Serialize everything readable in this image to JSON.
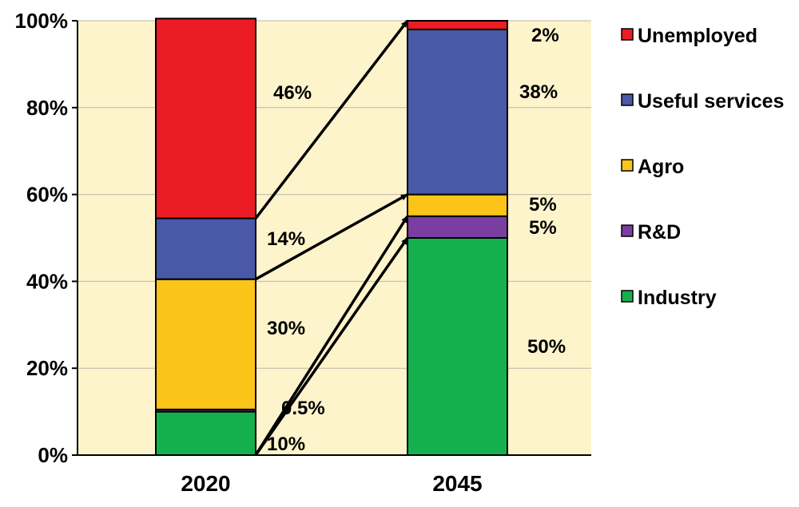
{
  "chart_data": {
    "type": "bar",
    "stacked": true,
    "categories": [
      "2020",
      "2045"
    ],
    "ylim": [
      0,
      100
    ],
    "yticks": [
      "0%",
      "20%",
      "40%",
      "60%",
      "80%",
      "100%"
    ],
    "grid": true,
    "legend_position": "right",
    "series": [
      {
        "name": "Industry",
        "color": "#15b04e",
        "values": [
          10,
          50
        ],
        "labels": [
          "10%",
          "50%"
        ]
      },
      {
        "name": "R&D",
        "color": "#7a3ea0",
        "values": [
          0.5,
          5
        ],
        "labels": [
          "0.5%",
          "5%"
        ]
      },
      {
        "name": "Agro",
        "color": "#fbc419",
        "values": [
          30,
          5
        ],
        "labels": [
          "30%",
          "5%"
        ]
      },
      {
        "name": "Useful services",
        "color": "#4a58a8",
        "values": [
          14,
          38
        ],
        "labels": [
          "14%",
          "38%"
        ]
      },
      {
        "name": "Unemployed",
        "color": "#ec1c24",
        "values": [
          46,
          2
        ],
        "labels": [
          "46%",
          "2%"
        ]
      }
    ],
    "legend_order": [
      "Unemployed",
      "Useful services",
      "Agro",
      "R&D",
      "Industry"
    ],
    "arrows": [
      {
        "from_series": "Unemployed",
        "to_series": "Unemployed"
      },
      {
        "from_series": "Useful services",
        "to_series": "Agro"
      },
      {
        "from_series": "Industry",
        "to_series": "R&D"
      },
      {
        "from_series": "Industry",
        "to_series": "Industry"
      }
    ],
    "colors": {
      "plot_background": "#fdf4cc",
      "gridline": "#bdb8a4",
      "outline": "#000000"
    }
  }
}
